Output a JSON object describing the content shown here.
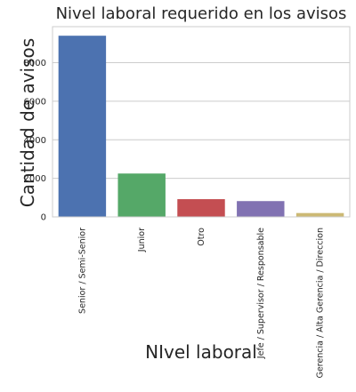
{
  "chart_data": {
    "type": "bar",
    "title": "Nivel laboral requerido en los avisos",
    "xlabel": "NIvel laboral",
    "ylabel": "Cantidad de avisos",
    "categories": [
      "Senior / Semi-Senior",
      "Junior",
      "Otro",
      "Jefe / Supervisor / Responsable",
      "Gerencia / Alta Gerencia / Direccion"
    ],
    "values": [
      9400,
      2250,
      920,
      820,
      200
    ],
    "colors": [
      "#4c72b0",
      "#55a868",
      "#c44e52",
      "#8172b2",
      "#ccb974"
    ],
    "yticks": [
      "0",
      "2000",
      "4000",
      "6000",
      "8000"
    ],
    "ylim": [
      0,
      9870
    ],
    "grid": "horizontal",
    "orientation": "vertical"
  }
}
